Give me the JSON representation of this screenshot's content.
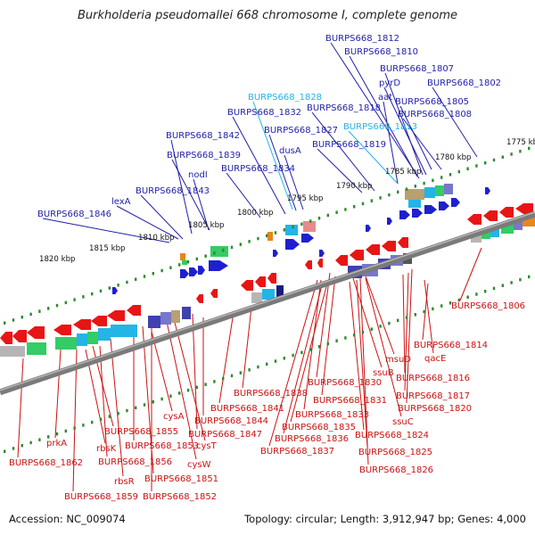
{
  "title": "Burkholderia pseudomallei 668 chromosome I, complete genome",
  "footer": {
    "accession": "Accession: NC_009074",
    "topology": "Topology: circular; Length: 3,912,947 bp; Genes: 4,000"
  },
  "colors": {
    "top_label": "#1f1fa8",
    "top_label_alt": "#22b5e6",
    "bottom_label": "#cc1111",
    "top_line": "#1f1fa8",
    "top_line_alt": "#22b5e6",
    "bottom_line": "#cc1111",
    "tick": "#2e8b2e",
    "backbone": "#7a7a7a"
  },
  "kbp_ticks": [
    "1775 kbp",
    "1780 kbp",
    "1785 kbp",
    "1790 kbp",
    "1795 kbp",
    "1800 kbp",
    "1805 kbp",
    "1810 kbp",
    "1815 kbp",
    "1820 kbp"
  ],
  "top_labels": [
    "BURPS668_1812",
    "BURPS668_1810",
    "BURPS668_1807",
    "pyrD",
    "BURPS668_1802",
    "BURPS668_1828",
    "aat",
    "BURPS668_1805",
    "BURPS668_1832",
    "BURPS668_1818",
    "BURPS668_1808",
    "BURPS668_1813",
    "BURPS668_1827",
    "BURPS668_1842",
    "BURPS668_1819",
    "dusA",
    "BURPS668_1839",
    "nodI",
    "BURPS668_1834",
    "BURPS668_1843",
    "lexA",
    "BURPS668_1846"
  ],
  "bottom_labels": [
    "BURPS668_1806",
    "BURPS668_1814",
    "qacE",
    "msuD",
    "BURPS668_1816",
    "ssuB",
    "BURPS668_1830",
    "BURPS668_1817",
    "BURPS668_1838",
    "BURPS668_1831",
    "BURPS668_1820",
    "BURPS668_1841",
    "BURPS668_1833",
    "ssuC",
    "cysA",
    "BURPS668_1844",
    "BURPS668_1835",
    "BURPS668_1824",
    "BURPS668_1855",
    "BURPS668_1847",
    "BURPS668_1836",
    "prkA",
    "rbsK",
    "BURPS668_1853",
    "cysT",
    "BURPS668_1837",
    "BURPS668_1825",
    "BURPS668_1856",
    "BURPS668_1862",
    "cysW",
    "BURPS668_1826",
    "BURPS668_1851",
    "rbsR",
    "BURPS668_1859",
    "BURPS668_1852"
  ]
}
